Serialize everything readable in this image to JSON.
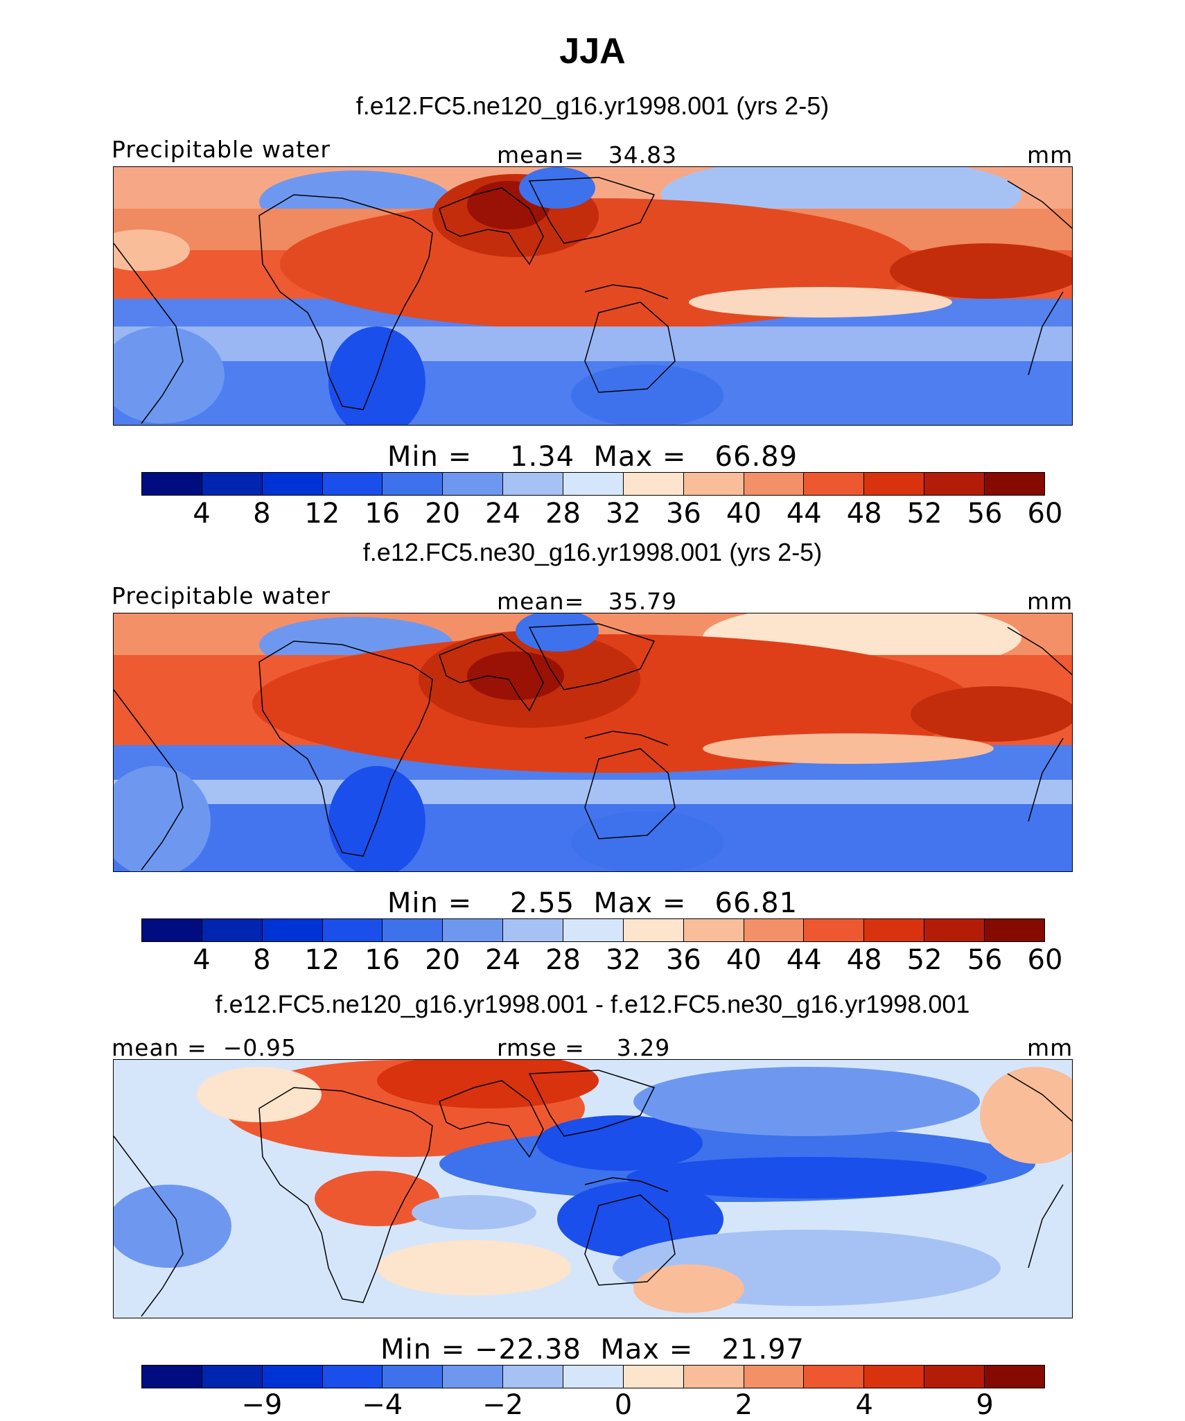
{
  "title": "JJA",
  "panels": [
    {
      "case": "f.e12.FC5.ne120_g16.yr1998.001 (yrs 2-5)",
      "left_label": "Precipitable water",
      "center_label": "mean=   34.83",
      "units": "mm",
      "minmax": "Min =    1.34  Max =   66.89"
    },
    {
      "case": "f.e12.FC5.ne30_g16.yr1998.001 (yrs 2-5)",
      "left_label": "Precipitable water",
      "center_label": "mean=   35.79",
      "units": "mm",
      "minmax": "Min =    2.55  Max =   66.81"
    },
    {
      "case": "f.e12.FC5.ne120_g16.yr1998.001 - f.e12.FC5.ne30_g16.yr1998.001",
      "left_label": "mean =  −0.95",
      "center_label": "rmse =    3.29",
      "units": "mm",
      "minmax": "Min = −22.38  Max =   21.97"
    }
  ],
  "colorbar_main": {
    "colors": [
      "#000d80",
      "#0025b0",
      "#0033d6",
      "#1a4fec",
      "#3d72ec",
      "#6e98f0",
      "#a6c2f5",
      "#d6e6fa",
      "#fde4cc",
      "#f9bd9a",
      "#f49067",
      "#ee5830",
      "#d9320f",
      "#b31d08",
      "#850a00"
    ],
    "ticks": [
      "4",
      "8",
      "12",
      "16",
      "20",
      "24",
      "28",
      "32",
      "36",
      "40",
      "44",
      "48",
      "52",
      "56",
      "60"
    ]
  },
  "colorbar_diff": {
    "colors": [
      "#000d80",
      "#0025b0",
      "#0033d6",
      "#1a4fec",
      "#3d72ec",
      "#6e98f0",
      "#a6c2f5",
      "#d6e6fa",
      "#fde4cc",
      "#f9bd9a",
      "#f49067",
      "#ee5830",
      "#d9320f",
      "#b31d08",
      "#850a00"
    ],
    "ticks": [
      "−9",
      "−4",
      "−2",
      "0",
      "2",
      "4",
      "9"
    ],
    "tick_boundaries": [
      2,
      4,
      6,
      8,
      10,
      12,
      14
    ]
  }
}
